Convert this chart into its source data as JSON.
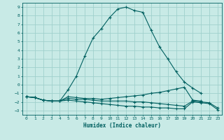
{
  "xlabel": "Humidex (Indice chaleur)",
  "background_color": "#c8eae6",
  "grid_color": "#a0d0cc",
  "line_color": "#006060",
  "xlim": [
    -0.5,
    23.5
  ],
  "ylim": [
    -3.5,
    9.5
  ],
  "xticks": [
    0,
    1,
    2,
    3,
    4,
    5,
    6,
    7,
    8,
    9,
    10,
    11,
    12,
    13,
    14,
    15,
    16,
    17,
    18,
    19,
    20,
    21,
    22,
    23
  ],
  "yticks": [
    -3,
    -2,
    -1,
    0,
    1,
    2,
    3,
    4,
    5,
    6,
    7,
    8,
    9
  ],
  "series": [
    [
      0,
      1,
      2,
      3,
      4,
      5,
      6,
      7,
      8,
      9,
      10,
      11,
      12,
      13,
      14,
      15,
      16,
      17,
      18,
      19,
      20,
      21,
      22,
      23
    ],
    [
      -1.4,
      -1.5,
      -1.8,
      -1.9,
      -1.9,
      -0.6,
      1.0,
      3.3,
      5.4,
      6.5,
      7.8,
      8.8,
      9.0,
      8.6,
      8.4,
      6.3,
      4.4,
      3.0,
      1.5,
      0.3,
      -0.4,
      -1.0,
      null,
      null
    ],
    [
      -1.4,
      -1.5,
      -1.8,
      -1.9,
      -1.9,
      -1.4,
      -1.5,
      -1.6,
      -1.6,
      -1.7,
      -1.6,
      -1.5,
      -1.4,
      -1.3,
      -1.2,
      -1.0,
      -0.9,
      -0.7,
      -0.5,
      -0.3,
      -1.8,
      -1.9,
      null,
      null
    ],
    [
      -1.4,
      -1.5,
      -1.8,
      -1.9,
      -1.9,
      -1.6,
      -1.7,
      -1.7,
      -1.8,
      -1.9,
      -1.9,
      -1.9,
      -1.9,
      -2.0,
      -2.0,
      -2.1,
      -2.2,
      -2.3,
      -2.4,
      -2.5,
      -1.9,
      -2.0,
      -2.1,
      -2.7
    ],
    [
      -1.4,
      -1.5,
      -1.8,
      -1.9,
      -1.9,
      -1.8,
      -1.9,
      -2.0,
      -2.1,
      -2.2,
      -2.3,
      -2.4,
      -2.5,
      -2.5,
      -2.6,
      -2.6,
      -2.7,
      -2.7,
      -2.8,
      -2.8,
      -2.0,
      -2.1,
      -2.2,
      -2.9
    ]
  ]
}
